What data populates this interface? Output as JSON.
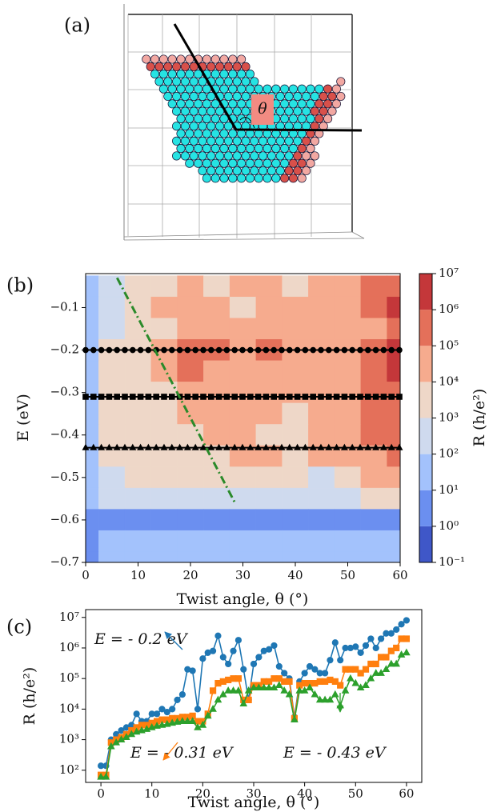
{
  "panel_a": {
    "label": "(a)",
    "angle_label": "θ"
  },
  "chart_data": [
    {
      "type": "contour",
      "label": "(b)",
      "x": [
        0,
        5,
        10,
        15,
        20,
        25,
        30,
        35,
        40,
        45,
        50,
        55,
        60
      ],
      "y": [
        -0.05,
        -0.1,
        -0.15,
        -0.2,
        -0.25,
        -0.3,
        -0.35,
        -0.4,
        -0.45,
        -0.5,
        -0.55,
        -0.6,
        -0.65,
        -0.7
      ],
      "z": [
        [
          50,
          300,
          3000,
          3000,
          30000,
          3000,
          30000,
          30000,
          3000,
          30000,
          30000,
          300000,
          300000
        ],
        [
          50,
          300,
          3000,
          30000,
          30000,
          30000,
          3000,
          30000,
          30000,
          30000,
          30000,
          300000,
          3000000
        ],
        [
          50,
          300,
          3000,
          3000,
          30000,
          30000,
          30000,
          30000,
          30000,
          30000,
          30000,
          30000,
          300000
        ],
        [
          50,
          3000,
          3000,
          30000,
          300000,
          300000,
          30000,
          300000,
          30000,
          30000,
          30000,
          300000,
          3000000
        ],
        [
          50,
          3000,
          3000,
          30000,
          300000,
          30000,
          30000,
          30000,
          30000,
          30000,
          30000,
          300000,
          3000000
        ],
        [
          50,
          3000,
          3000,
          3000,
          30000,
          30000,
          30000,
          30000,
          30000,
          30000,
          30000,
          300000,
          300000
        ],
        [
          50,
          3000,
          3000,
          3000,
          30000,
          30000,
          30000,
          30000,
          3000,
          30000,
          30000,
          300000,
          300000
        ],
        [
          50,
          3000,
          3000,
          3000,
          3000,
          30000,
          30000,
          3000,
          3000,
          30000,
          30000,
          300000,
          300000
        ],
        [
          50,
          3000,
          3000,
          3000,
          3000,
          3000,
          30000,
          30000,
          3000,
          30000,
          30000,
          30000,
          300000
        ],
        [
          50,
          300,
          3000,
          3000,
          3000,
          3000,
          3000,
          3000,
          3000,
          300,
          3000,
          30000,
          30000
        ],
        [
          50,
          300,
          300,
          300,
          300,
          300,
          300,
          300,
          300,
          300,
          300,
          3000,
          3000
        ],
        [
          5,
          5,
          5,
          5,
          5,
          5,
          5,
          5,
          5,
          5,
          5,
          5,
          5
        ],
        [
          5,
          30,
          30,
          30,
          30,
          30,
          30,
          30,
          30,
          30,
          30,
          30,
          30
        ],
        [
          5,
          30,
          30,
          30,
          30,
          30,
          30,
          30,
          30,
          30,
          30,
          30,
          30
        ]
      ],
      "xlim": [
        0,
        60
      ],
      "ylim": [
        -0.7,
        -0.02
      ],
      "xticks": [
        0,
        10,
        20,
        30,
        40,
        50,
        60
      ],
      "yticks": [
        {
          "value": -0.1,
          "label": "−0.1"
        },
        {
          "value": -0.2,
          "label": "−0.2"
        },
        {
          "value": -0.3,
          "label": "−0.3"
        },
        {
          "value": -0.4,
          "label": "−0.4"
        },
        {
          "value": -0.5,
          "label": "−0.5"
        },
        {
          "value": -0.6,
          "label": "−0.6"
        },
        {
          "value": -0.7,
          "label": "−0.7"
        }
      ],
      "xlabel": "Twist angle, θ (°)",
      "ylabel": "E (eV)",
      "colorbar": {
        "label": "R (h/e²)",
        "scale": "log",
        "ticks": [
          {
            "value": 0.1,
            "label": "10⁻¹"
          },
          {
            "value": 1,
            "label": "10⁰"
          },
          {
            "value": 10,
            "label": "10¹"
          },
          {
            "value": 100,
            "label": "10²"
          },
          {
            "value": 1000,
            "label": "10³"
          },
          {
            "value": 10000,
            "label": "10⁴"
          },
          {
            "value": 100000,
            "label": "10⁵"
          },
          {
            "value": 1000000,
            "label": "10⁶"
          },
          {
            "value": 10000000,
            "label": "10⁷"
          }
        ],
        "colors": [
          "#3f57c8",
          "#6b8ff0",
          "#a3c2fc",
          "#cfdaee",
          "#eed7c8",
          "#f6ab8e",
          "#e4705a",
          "#c4373a"
        ]
      },
      "lines": [
        {
          "y": -0.2,
          "marker": "circle"
        },
        {
          "y": -0.31,
          "marker": "square"
        },
        {
          "y": -0.43,
          "marker": "triangle"
        }
      ],
      "line_color": "#000000",
      "diagonal": {
        "x": [
          6,
          28.5
        ],
        "y": [
          -0.03,
          -0.56
        ],
        "color": "#2a8a2a"
      }
    },
    {
      "type": "line",
      "label": "(c)",
      "x": [
        0,
        1,
        2,
        3,
        4,
        5,
        6,
        7,
        8,
        9,
        10,
        11,
        12,
        13,
        14,
        15,
        16,
        17,
        18,
        19,
        20,
        21,
        22,
        23,
        24,
        25,
        26,
        27,
        28,
        29,
        30,
        31,
        32,
        33,
        34,
        35,
        36,
        37,
        38,
        39,
        40,
        41,
        42,
        43,
        44,
        45,
        46,
        47,
        48,
        49,
        50,
        51,
        52,
        53,
        54,
        55,
        56,
        57,
        58,
        59,
        60
      ],
      "series": [
        {
          "name": "E = - 0.2 eV",
          "color": "#1f77b4",
          "marker": "circle",
          "values": [
            140,
            140,
            1000,
            1500,
            2000,
            2500,
            3000,
            7000,
            4000,
            4000,
            7000,
            7000,
            10000,
            8000,
            10000,
            20000,
            30000,
            200000,
            180000,
            10000,
            450000,
            700000,
            800000,
            2500000,
            500000,
            300000,
            800000,
            1800000,
            200000,
            20000,
            300000,
            500000,
            800000,
            900000,
            1200000,
            250000,
            150000,
            100000,
            5500,
            80000,
            150000,
            250000,
            200000,
            150000,
            150000,
            400000,
            1500000,
            400000,
            1000000,
            1000000,
            1100000,
            700000,
            1200000,
            2000000,
            1000000,
            2000000,
            3000000,
            3000000,
            4000000,
            6000000,
            8000000
          ]
        },
        {
          "name": "E = - 0.31 eV",
          "color": "#ff7f0e",
          "marker": "square",
          "values": [
            70,
            70,
            800,
            1000,
            1200,
            1500,
            2000,
            2500,
            3000,
            3000,
            3500,
            4000,
            4500,
            4500,
            5000,
            5000,
            5500,
            5500,
            6000,
            4000,
            4000,
            7000,
            40000,
            70000,
            80000,
            90000,
            100000,
            100000,
            20000,
            20000,
            60000,
            60000,
            80000,
            80000,
            100000,
            100000,
            80000,
            80000,
            5000,
            60000,
            70000,
            70000,
            70000,
            80000,
            80000,
            90000,
            80000,
            60000,
            200000,
            200000,
            200000,
            150000,
            200000,
            300000,
            300000,
            500000,
            500000,
            800000,
            1000000,
            2000000,
            2000000
          ]
        },
        {
          "name": "E = - 0.43 eV",
          "color": "#2ca02c",
          "marker": "triangle",
          "values": [
            60,
            60,
            600,
            800,
            1000,
            1200,
            1500,
            1800,
            2000,
            2200,
            2500,
            2800,
            3000,
            3200,
            3500,
            3800,
            4000,
            4000,
            4000,
            2500,
            3000,
            6000,
            10000,
            20000,
            30000,
            40000,
            40000,
            40000,
            15000,
            40000,
            50000,
            50000,
            50000,
            50000,
            50000,
            60000,
            40000,
            30000,
            4500,
            40000,
            40000,
            50000,
            30000,
            20000,
            20000,
            20000,
            30000,
            13000,
            40000,
            100000,
            70000,
            50000,
            60000,
            100000,
            150000,
            150000,
            200000,
            300000,
            300000,
            600000,
            700000
          ]
        }
      ],
      "xlim": [
        -3,
        63
      ],
      "ylim": [
        40,
        18000000
      ],
      "yscale": "log",
      "xticks": [
        0,
        10,
        20,
        30,
        40,
        50,
        60
      ],
      "yticks": [
        {
          "value": 100,
          "label": "10²"
        },
        {
          "value": 1000,
          "label": "10³"
        },
        {
          "value": 10000,
          "label": "10⁴"
        },
        {
          "value": 100000,
          "label": "10⁵"
        },
        {
          "value": 1000000,
          "label": "10⁶"
        },
        {
          "value": 10000000,
          "label": "10⁷"
        }
      ],
      "xlabel": "Twist angle, θ (°)",
      "ylabel": "R (h/e²)"
    }
  ]
}
